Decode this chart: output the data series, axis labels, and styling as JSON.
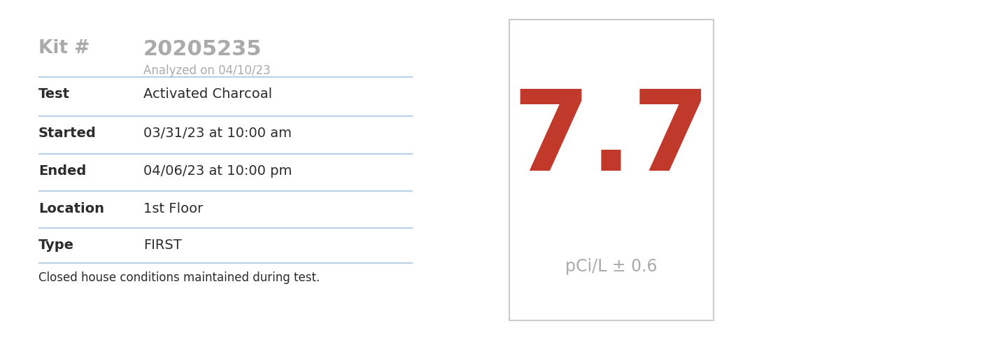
{
  "background_color": "#ffffff",
  "left_panel": {
    "kit_label": "Kit #",
    "kit_value": "20205235",
    "analyzed": "Analyzed on 04/10/23",
    "rows": [
      {
        "label": "Test",
        "value": "Activated Charcoal"
      },
      {
        "label": "Started",
        "value": "03/31/23 at 10:00 am"
      },
      {
        "label": "Ended",
        "value": "04/06/23 at 10:00 pm"
      },
      {
        "label": "Location",
        "value": "1st Floor"
      },
      {
        "label": "Type",
        "value": "FIRST"
      }
    ],
    "footer": "Closed house conditions maintained during test.",
    "label_color": "#2c2c2c",
    "value_color": "#2c2c2c",
    "kit_label_color": "#aaaaaa",
    "kit_value_color": "#aaaaaa",
    "analyzed_color": "#aaaaaa",
    "divider_color": "#b8d0e8",
    "footer_color": "#2c2c2c"
  },
  "right_panel": {
    "value": "7.7",
    "unit": "pCi/L ± 0.6",
    "value_color": "#c0392b",
    "unit_color": "#aaaaaa",
    "box_edge_color": "#cccccc",
    "box_face_color": "#ffffff"
  }
}
